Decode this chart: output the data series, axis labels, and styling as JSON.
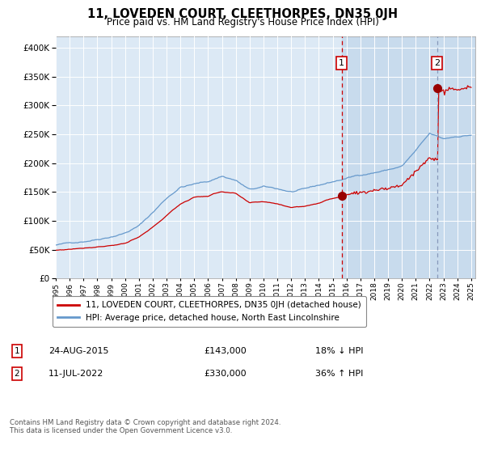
{
  "title": "11, LOVEDEN COURT, CLEETHORPES, DN35 0JH",
  "subtitle": "Price paid vs. HM Land Registry's House Price Index (HPI)",
  "legend_line1": "11, LOVEDEN COURT, CLEETHORPES, DN35 0JH (detached house)",
  "legend_line2": "HPI: Average price, detached house, North East Lincolnshire",
  "transaction1_date": "24-AUG-2015",
  "transaction1_price": 143000,
  "transaction1_hpi": "18% ↓ HPI",
  "transaction2_date": "11-JUL-2022",
  "transaction2_price": 330000,
  "transaction2_hpi": "36% ↑ HPI",
  "footer": "Contains HM Land Registry data © Crown copyright and database right 2024.\nThis data is licensed under the Open Government Licence v3.0.",
  "plot_background": "#dce9f5",
  "red_line_color": "#cc0000",
  "blue_line_color": "#6699cc",
  "ylim": [
    0,
    420000
  ],
  "yticks": [
    0,
    50000,
    100000,
    150000,
    200000,
    250000,
    300000,
    350000,
    400000
  ],
  "year_start": 1995,
  "year_end": 2025,
  "transaction1_year": 2015.65,
  "transaction2_year": 2022.53,
  "marker_color": "#990000",
  "shade_color": "#b8d0e8",
  "vline1_color": "#cc0000",
  "vline2_color": "#8899bb"
}
